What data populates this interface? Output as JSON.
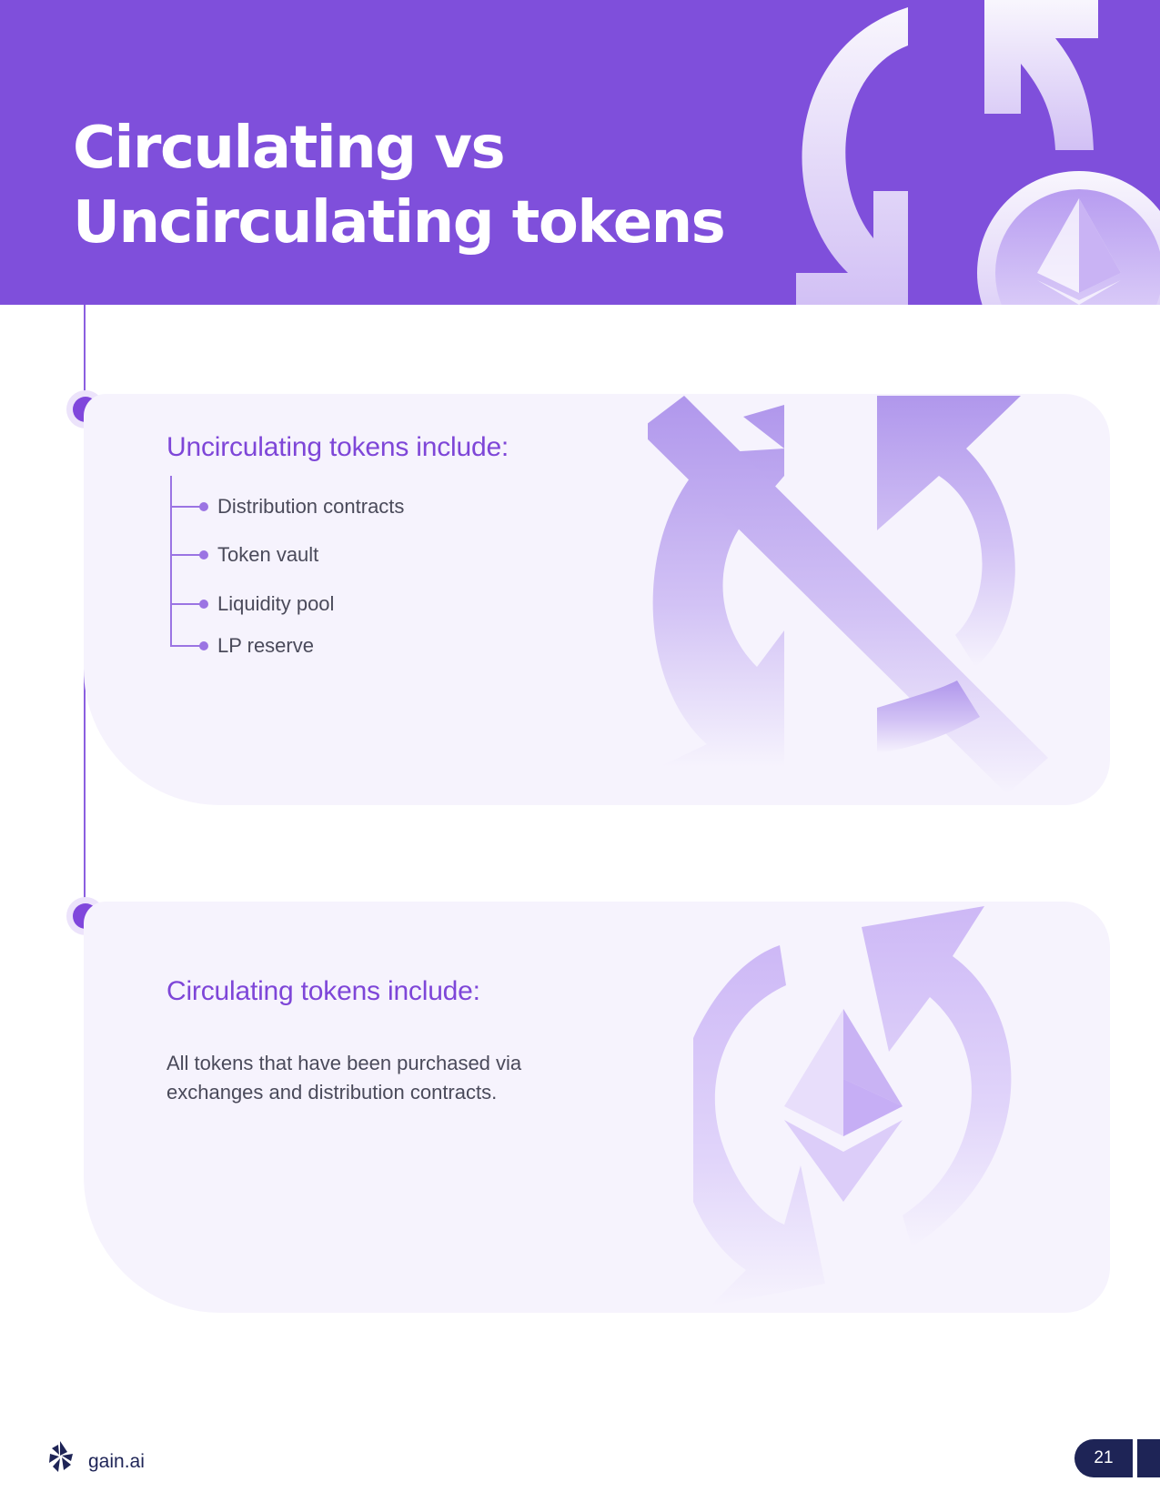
{
  "header": {
    "title_line1": "Circulating vs",
    "title_line2": "Uncirculating tokens"
  },
  "uncirculating_card": {
    "heading": "Uncirculating tokens include:",
    "items": [
      {
        "label": "Distribution contracts"
      },
      {
        "label": "Token vault"
      },
      {
        "label": "Liquidity pool"
      },
      {
        "label": "LP reserve"
      }
    ]
  },
  "circulating_card": {
    "heading": "Circulating tokens include:",
    "body": "All tokens that have been purchased via exchanges and distribution contracts."
  },
  "footer": {
    "brand": "gain.ai",
    "page_number": "21"
  },
  "colors": {
    "header_purple": "#7f4fdb",
    "heading_purple": "#7e46d8",
    "card_background": "#f6f3fd",
    "footer_navy": "#1e2456"
  },
  "icons": [
    "refresh-arrows-icon",
    "ethereum-icon",
    "no-refresh-icon",
    "gain-ai-logo-icon"
  ]
}
